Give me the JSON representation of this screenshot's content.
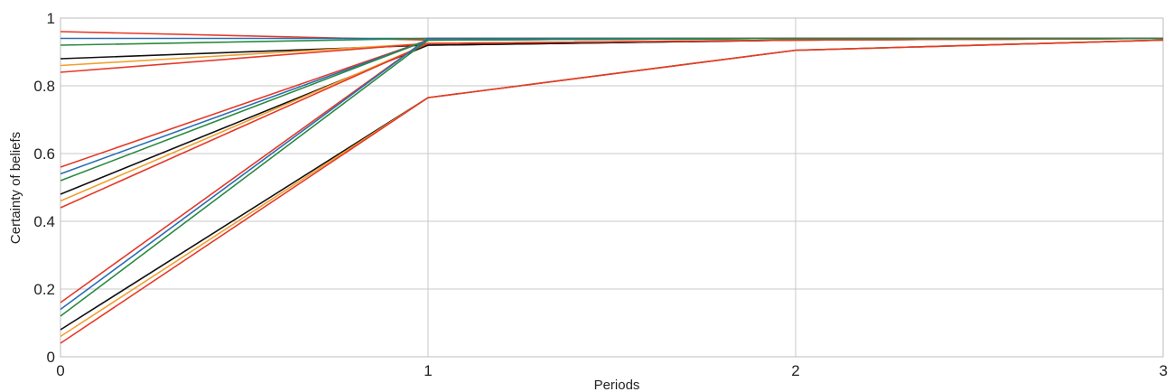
{
  "chart_data": {
    "type": "line",
    "title": "",
    "xlabel": "Periods",
    "ylabel": "Certainty of beliefs",
    "x": [
      0,
      1,
      2,
      3
    ],
    "x_ticks": [
      "0",
      "1",
      "2",
      "3"
    ],
    "y_ticks": [
      "0",
      "0.2",
      "0.4",
      "0.6",
      "0.8",
      "1"
    ],
    "xlim": [
      0,
      3
    ],
    "ylim": [
      0,
      1
    ],
    "grid": true,
    "legend": "none",
    "series": [
      {
        "color": "#e53a2a",
        "values": [
          0.96,
          0.935,
          0.94,
          0.94
        ]
      },
      {
        "color": "#2a6db5",
        "values": [
          0.94,
          0.94,
          0.94,
          0.94
        ]
      },
      {
        "color": "#2a8a3e",
        "values": [
          0.92,
          0.94,
          0.94,
          0.94
        ]
      },
      {
        "color": "#111111",
        "values": [
          0.88,
          0.92,
          0.935,
          0.94
        ]
      },
      {
        "color": "#f0a030",
        "values": [
          0.86,
          0.925,
          0.935,
          0.94
        ]
      },
      {
        "color": "#e53a2a",
        "values": [
          0.84,
          0.925,
          0.935,
          0.94
        ]
      },
      {
        "color": "#e53a2a",
        "values": [
          0.56,
          0.935,
          0.94,
          0.94
        ]
      },
      {
        "color": "#2a6db5",
        "values": [
          0.54,
          0.935,
          0.94,
          0.94
        ]
      },
      {
        "color": "#2a8a3e",
        "values": [
          0.52,
          0.935,
          0.94,
          0.94
        ]
      },
      {
        "color": "#111111",
        "values": [
          0.48,
          0.92,
          0.935,
          0.94
        ]
      },
      {
        "color": "#f0a030",
        "values": [
          0.46,
          0.925,
          0.935,
          0.94
        ]
      },
      {
        "color": "#e53a2a",
        "values": [
          0.44,
          0.925,
          0.935,
          0.94
        ]
      },
      {
        "color": "#e53a2a",
        "values": [
          0.16,
          0.94,
          0.94,
          0.94
        ]
      },
      {
        "color": "#2a6db5",
        "values": [
          0.14,
          0.94,
          0.94,
          0.94
        ]
      },
      {
        "color": "#2a8a3e",
        "values": [
          0.12,
          0.935,
          0.94,
          0.94
        ]
      },
      {
        "color": "#111111",
        "values": [
          0.08,
          0.765,
          0.905,
          0.935
        ]
      },
      {
        "color": "#f0a030",
        "values": [
          0.06,
          0.765,
          0.905,
          0.935
        ]
      },
      {
        "color": "#e53a2a",
        "values": [
          0.04,
          0.765,
          0.905,
          0.935
        ]
      }
    ]
  }
}
